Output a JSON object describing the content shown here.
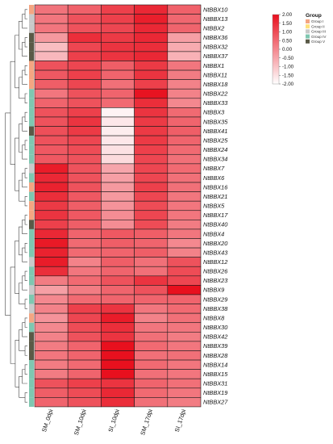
{
  "chart_data": {
    "type": "heatmap",
    "columns": [
      "SM_0dpi",
      "SM_10dpi",
      "SI_10dpi",
      "SM_17dpi",
      "SI_17dpi"
    ],
    "rows": [
      {
        "gene": "NtBBX10",
        "group": 1,
        "values": [
          0.35,
          0.65,
          1.2,
          1.6,
          0.65
        ]
      },
      {
        "gene": "NtBBX13",
        "group": 3,
        "values": [
          0.3,
          0.9,
          1.2,
          1.75,
          0.55
        ]
      },
      {
        "gene": "NtBBX2",
        "group": 3,
        "values": [
          0.3,
          0.9,
          1.1,
          1.6,
          0.6
        ]
      },
      {
        "gene": "NtBBX36",
        "group": 5,
        "values": [
          -0.3,
          1.5,
          1.3,
          1.6,
          -0.4
        ]
      },
      {
        "gene": "NtBBX32",
        "group": 5,
        "values": [
          -0.9,
          1.1,
          1.4,
          1.5,
          -0.6
        ]
      },
      {
        "gene": "NtBBX37",
        "group": 5,
        "values": [
          -0.8,
          1.2,
          1.4,
          1.6,
          -0.7
        ]
      },
      {
        "gene": "NtBBX1",
        "group": 1,
        "values": [
          0.9,
          1.1,
          0.7,
          1.3,
          0.3
        ]
      },
      {
        "gene": "NtBBX11",
        "group": 1,
        "values": [
          0.8,
          1.2,
          0.6,
          1.4,
          0.2
        ]
      },
      {
        "gene": "NtBBX18",
        "group": 1,
        "values": [
          0.7,
          1.1,
          0.4,
          1.2,
          0.1
        ]
      },
      {
        "gene": "NtBBX22",
        "group": 4,
        "values": [
          0.3,
          0.9,
          0.6,
          1.95,
          0.1
        ]
      },
      {
        "gene": "NtBBX33",
        "group": 4,
        "values": [
          0.6,
          0.9,
          0.5,
          1.5,
          0.0
        ]
      },
      {
        "gene": "NtBBX3",
        "group": 4,
        "values": [
          0.9,
          1.2,
          -1.8,
          1.4,
          0.5
        ]
      },
      {
        "gene": "NtBBX35",
        "group": 4,
        "values": [
          0.9,
          1.4,
          -1.6,
          1.3,
          0.6
        ]
      },
      {
        "gene": "NtBBX41",
        "group": 5,
        "values": [
          0.95,
          1.3,
          -1.7,
          1.3,
          0.7
        ]
      },
      {
        "gene": "NtBBX25",
        "group": 4,
        "values": [
          0.9,
          1.1,
          -1.6,
          1.3,
          0.6
        ]
      },
      {
        "gene": "NtBBX24",
        "group": 4,
        "values": [
          0.8,
          1.0,
          -1.5,
          1.2,
          0.5
        ]
      },
      {
        "gene": "NtBBX34",
        "group": 4,
        "values": [
          0.8,
          0.9,
          -1.4,
          1.1,
          0.4
        ]
      },
      {
        "gene": "NtBBX7",
        "group": 3,
        "values": [
          1.8,
          0.9,
          -0.5,
          1.1,
          0.5
        ]
      },
      {
        "gene": "NtBBX6",
        "group": 4,
        "values": [
          1.6,
          0.9,
          -0.4,
          1.1,
          0.4
        ]
      },
      {
        "gene": "NtBBX16",
        "group": 1,
        "values": [
          1.7,
          0.9,
          -0.3,
          1.2,
          0.4
        ]
      },
      {
        "gene": "NtBBX21",
        "group": 4,
        "values": [
          1.5,
          0.8,
          -0.3,
          1.1,
          0.3
        ]
      },
      {
        "gene": "NtBBX5",
        "group": 1,
        "values": [
          1.3,
          0.7,
          -0.2,
          1.0,
          0.3
        ]
      },
      {
        "gene": "NtBBX17",
        "group": 1,
        "values": [
          1.4,
          0.8,
          -0.1,
          1.1,
          0.3
        ]
      },
      {
        "gene": "NtBBX40",
        "group": 5,
        "values": [
          1.2,
          0.7,
          -0.1,
          1.0,
          0.2
        ]
      },
      {
        "gene": "NtBBX4",
        "group": 4,
        "values": [
          1.6,
          0.6,
          0.8,
          0.7,
          0.3
        ]
      },
      {
        "gene": "NtBBX20",
        "group": 4,
        "values": [
          1.85,
          0.5,
          0.7,
          0.6,
          0.0
        ]
      },
      {
        "gene": "NtBBX43",
        "group": 4,
        "values": [
          1.7,
          0.5,
          0.6,
          0.7,
          0.1
        ]
      },
      {
        "gene": "NtBBX12",
        "group": 3,
        "values": [
          1.8,
          0.1,
          0.7,
          0.4,
          0.9
        ]
      },
      {
        "gene": "NtBBX26",
        "group": 4,
        "values": [
          1.5,
          0.3,
          0.6,
          0.4,
          1.0
        ]
      },
      {
        "gene": "NtBBX23",
        "group": 4,
        "values": [
          0.2,
          0.5,
          0.9,
          1.4,
          1.1
        ]
      },
      {
        "gene": "NtBBX9",
        "group": 3,
        "values": [
          -0.4,
          0.2,
          0.6,
          0.9,
          2.0
        ]
      },
      {
        "gene": "NtBBX29",
        "group": 4,
        "values": [
          0.0,
          0.5,
          0.6,
          0.6,
          0.6
        ]
      },
      {
        "gene": "NtBBX38",
        "group": 3,
        "values": [
          0.1,
          1.2,
          1.4,
          0.3,
          0.5
        ]
      },
      {
        "gene": "NtBBX8",
        "group": 1,
        "values": [
          -0.2,
          1.1,
          1.8,
          0.1,
          0.4
        ]
      },
      {
        "gene": "NtBBX30",
        "group": 4,
        "values": [
          0.0,
          1.0,
          1.5,
          0.3,
          0.3
        ]
      },
      {
        "gene": "NtBBX42",
        "group": 5,
        "values": [
          0.1,
          0.9,
          1.4,
          0.4,
          0.2
        ]
      },
      {
        "gene": "NtBBX39",
        "group": 5,
        "values": [
          0.2,
          0.6,
          2.0,
          0.5,
          0.3
        ]
      },
      {
        "gene": "NtBBX28",
        "group": 5,
        "values": [
          0.3,
          0.6,
          2.0,
          0.4,
          0.4
        ]
      },
      {
        "gene": "NtBBX14",
        "group": 4,
        "values": [
          0.2,
          0.5,
          2.0,
          0.5,
          0.3
        ]
      },
      {
        "gene": "NtBBX15",
        "group": 4,
        "values": [
          0.2,
          0.6,
          2.0,
          0.4,
          0.3
        ]
      },
      {
        "gene": "NtBBX31",
        "group": 4,
        "values": [
          0.9,
          1.2,
          1.4,
          0.6,
          0.4
        ]
      },
      {
        "gene": "NtBBX19",
        "group": 4,
        "values": [
          0.7,
          1.0,
          1.6,
          0.5,
          0.3
        ]
      },
      {
        "gene": "NtBBX27",
        "group": 4,
        "values": [
          0.6,
          0.9,
          1.5,
          0.4,
          0.2
        ]
      }
    ],
    "scale": {
      "min": -2.0,
      "max": 2.0,
      "ticks": [
        "2.00",
        "1.50",
        "1.00",
        "0.50",
        "0.00",
        "-0.50",
        "-1.00",
        "-1.50",
        "-2.00"
      ],
      "low_color": "#ffffff",
      "high_color": "#e8101e"
    },
    "group_legend": {
      "title": "Group",
      "items": [
        {
          "label": "Group I",
          "color": "#f4a582"
        },
        {
          "label": "Group II",
          "color": "#ffe07a"
        },
        {
          "label": "Group III",
          "color": "#c9c9c9"
        },
        {
          "label": "Group IV",
          "color": "#7fc7b0"
        },
        {
          "label": "Group V",
          "color": "#5a5a47"
        }
      ]
    },
    "legend_position": "top-right",
    "grid": true
  }
}
